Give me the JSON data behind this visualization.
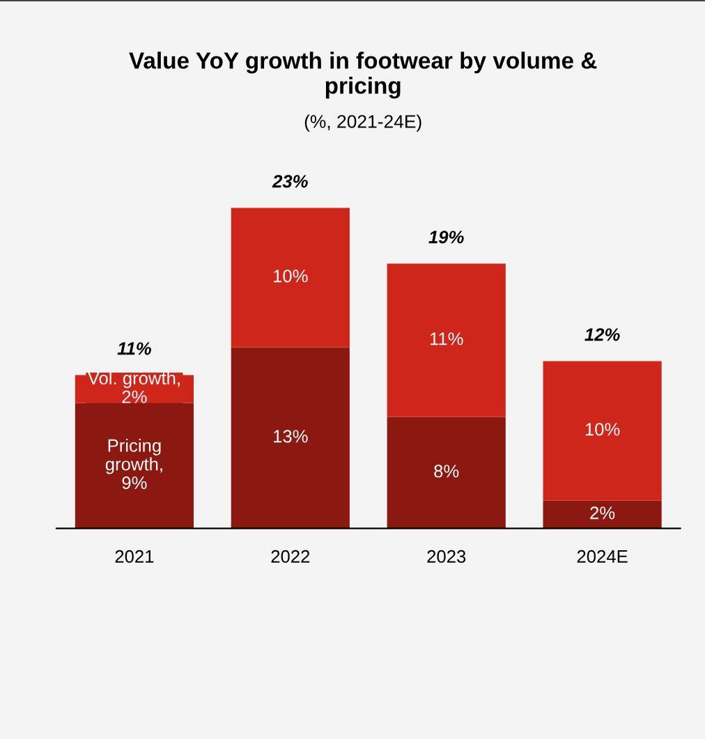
{
  "chart_data": {
    "type": "bar",
    "title": "Value YoY growth in footwear by volume &\npricing",
    "subtitle": "(%, 2021-24E)",
    "categories": [
      "2021",
      "2022",
      "2023",
      "2024E"
    ],
    "stacked": true,
    "legend": false,
    "grid": false,
    "series": [
      {
        "color": "#8b1811",
        "values": [
          9,
          13,
          8,
          2
        ],
        "value_labels": [
          "Pricing\ngrowth,\n9%",
          "13%",
          "8%",
          "2%"
        ]
      },
      {
        "color": "#cf261b",
        "values": [
          2,
          10,
          11,
          10
        ],
        "value_labels": [
          "Vol. growth,\n2%",
          "10%",
          "11%",
          "10%"
        ]
      }
    ],
    "totals": [
      "11%",
      "23%",
      "19%",
      "12%"
    ]
  }
}
